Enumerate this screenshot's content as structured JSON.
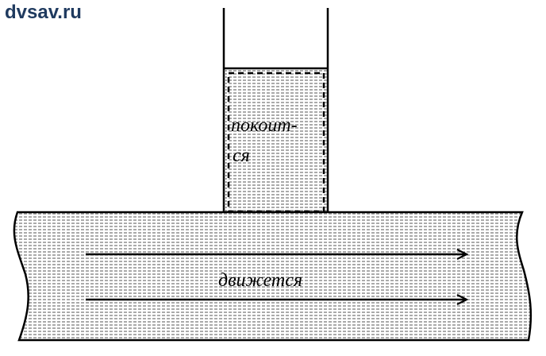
{
  "watermark": {
    "text": "dvsav.ru",
    "color": "#1f3a5f"
  },
  "diagram": {
    "tube_label_line1": "покоит-",
    "tube_label_line2": "ся",
    "pipe_label": "движется",
    "arrow_count": 2,
    "arrow_direction": "right",
    "fill_pattern": "horizontal-hatch"
  }
}
